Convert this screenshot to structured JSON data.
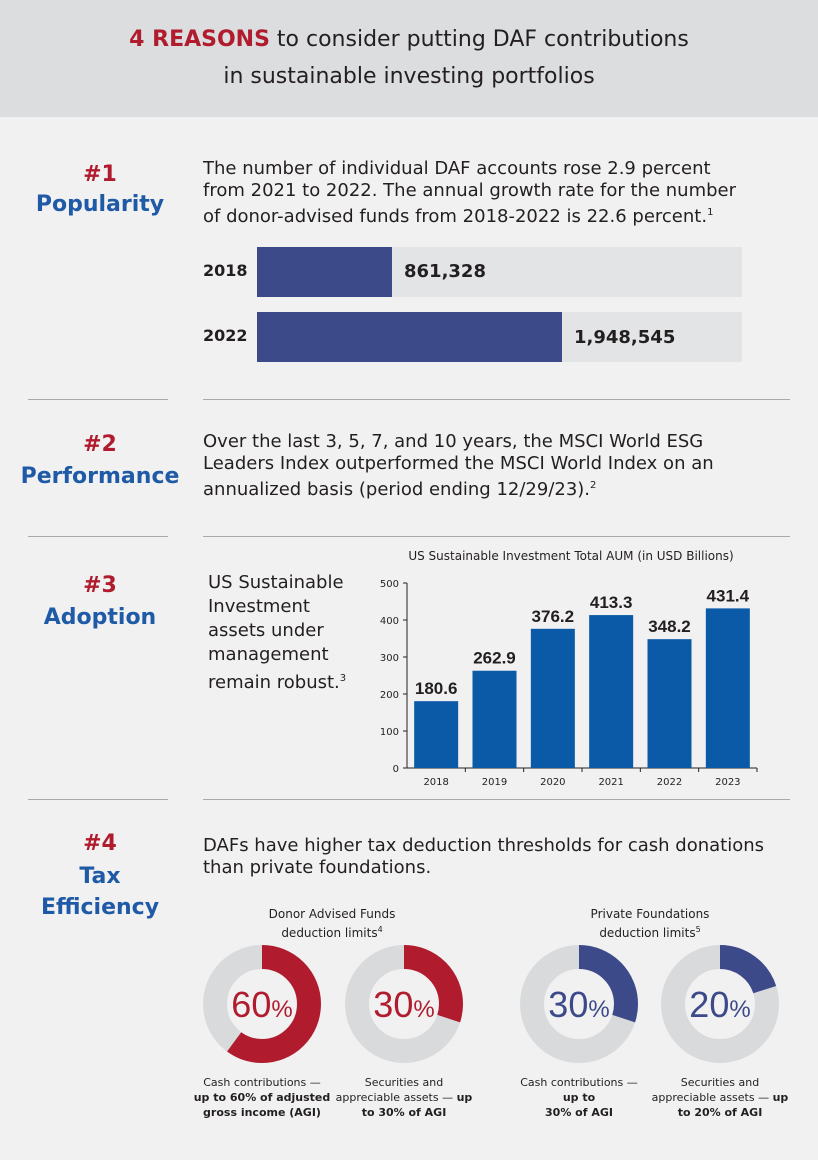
{
  "header": {
    "accent": "4 REASONS",
    "line1_rest": " to consider putting DAF contributions",
    "line2": "in sustainable investing portfolios"
  },
  "sections": {
    "popularity": {
      "number": "#1",
      "name": "Popularity",
      "text_lines": [
        "The number of individual DAF accounts rose 2.9 percent",
        "from 2021 to 2022. The annual growth rate for the number",
        "of donor-advised funds from 2018-2022 is 22.6 percent."
      ],
      "footnote": "1",
      "bars": [
        {
          "year": "2018",
          "value": 861328,
          "value_label": "861,328"
        },
        {
          "year": "2022",
          "value": 1948545,
          "value_label": "1,948,545"
        }
      ],
      "bar_max": 3100000
    },
    "performance": {
      "number": "#2",
      "name": "Performance",
      "text_lines": [
        "Over the last 3, 5, 7, and 10 years, the MSCI World ESG",
        "Leaders Index outperformed the MSCI World Index on an",
        "annualized basis (period ending 12/29/23)."
      ],
      "footnote": "2"
    },
    "adoption": {
      "number": "#3",
      "name": "Adoption",
      "text_lines": [
        "US Sustainable",
        "Investment",
        "assets under",
        "management",
        "remain robust."
      ],
      "footnote": "3"
    },
    "tax": {
      "number": "#4",
      "name_line1": "Tax",
      "name_line2": "Efficiency",
      "text_lines": [
        "DAFs have higher tax deduction thresholds for cash donations",
        "than private foundations."
      ],
      "daf_title_line1": "Donor Advised Funds",
      "daf_title_line2": "deduction limits",
      "daf_footnote": "4",
      "pf_title_line1": "Private Foundations",
      "pf_title_line2": "deduction limits",
      "pf_footnote": "5",
      "donuts": [
        {
          "pct": 60,
          "num": "60",
          "sign": "%",
          "color": "#b01c2e",
          "caption_plain": "Cash contributions —",
          "caption_bold": [
            "up to 60% of adjusted",
            "gross income (AGI)"
          ]
        },
        {
          "pct": 30,
          "num": "30",
          "sign": "%",
          "color": "#b01c2e",
          "caption_plain": "Securities and",
          "caption_plain2": "appreciable assets — ",
          "caption_bold_inline": "up",
          "caption_bold": [
            "to 30% of AGI"
          ]
        },
        {
          "pct": 30,
          "num": "30",
          "sign": "%",
          "color": "#3c4a8a",
          "caption_plain": "Cash contributions —",
          "caption_bold": [
            "up to",
            "30% of AGI"
          ]
        },
        {
          "pct": 20,
          "num": "20",
          "sign": "%",
          "color": "#3c4a8a",
          "caption_plain": "Securities and",
          "caption_plain2": "appreciable assets — ",
          "caption_bold_inline": "up",
          "caption_bold": [
            "to 20% of AGI"
          ]
        }
      ]
    }
  },
  "chart_data": {
    "type": "bar",
    "title": "US Sustainable Investment Total AUM (in USD Billions)",
    "categories": [
      "2018",
      "2019",
      "2020",
      "2021",
      "2022",
      "2023"
    ],
    "values": [
      180.6,
      262.9,
      376.2,
      413.3,
      348.2,
      431.4
    ],
    "value_labels": [
      "180.6",
      "262.9",
      "376.2",
      "413.3",
      "348.2",
      "431.4"
    ],
    "yticks": [
      0,
      100,
      200,
      300,
      400,
      500
    ],
    "ylim": [
      0,
      500
    ],
    "xlabel": "",
    "ylabel": "",
    "bar_color": "#0a5aa8"
  },
  "colors": {
    "red": "#b01c2e",
    "blue": "#1f5aa6",
    "navy": "#3c4a8a",
    "ring": "#d9dadc"
  }
}
